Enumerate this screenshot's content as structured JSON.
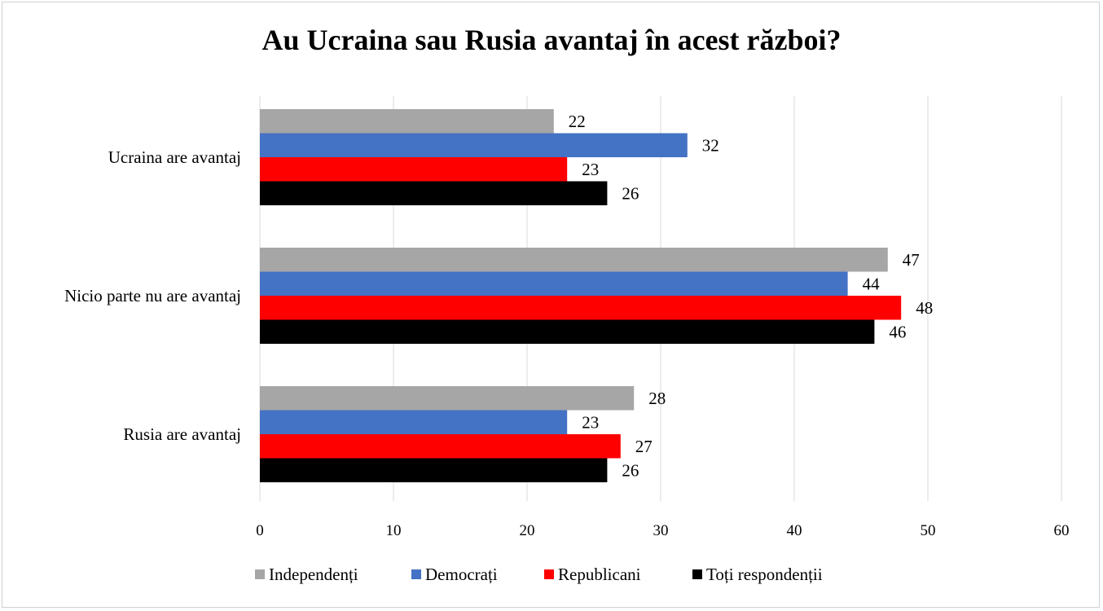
{
  "chart_data": {
    "type": "bar",
    "orientation": "horizontal",
    "title": "Au Ucraina sau Rusia avantaj în acest război?",
    "categories": [
      "Ucraina are avantaj",
      "Nicio parte nu are avantaj",
      "Rusia are avantaj"
    ],
    "series": [
      {
        "name": "Independenți",
        "color": "#a6a6a6",
        "values": [
          22,
          47,
          28
        ]
      },
      {
        "name": "Democrați",
        "color": "#4472c4",
        "values": [
          32,
          44,
          23
        ]
      },
      {
        "name": "Republicani",
        "color": "#ff0000",
        "values": [
          23,
          48,
          27
        ]
      },
      {
        "name": "Toți respondenții",
        "color": "#000000",
        "values": [
          26,
          46,
          26
        ]
      }
    ],
    "xlim": [
      0,
      60
    ],
    "xticks": [
      0,
      10,
      20,
      30,
      40,
      50,
      60
    ],
    "xlabel": "",
    "ylabel": "",
    "grid": true,
    "legend_position": "bottom"
  }
}
